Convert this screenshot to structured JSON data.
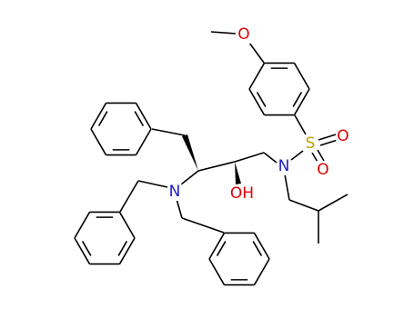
{
  "atoms": [
    {
      "label": "O"
    },
    {
      "label": "S"
    },
    {
      "label": "O"
    },
    {
      "label": "O"
    },
    {
      "label": "N"
    },
    {
      "label": "OH"
    },
    {
      "label": "N"
    }
  ]
}
